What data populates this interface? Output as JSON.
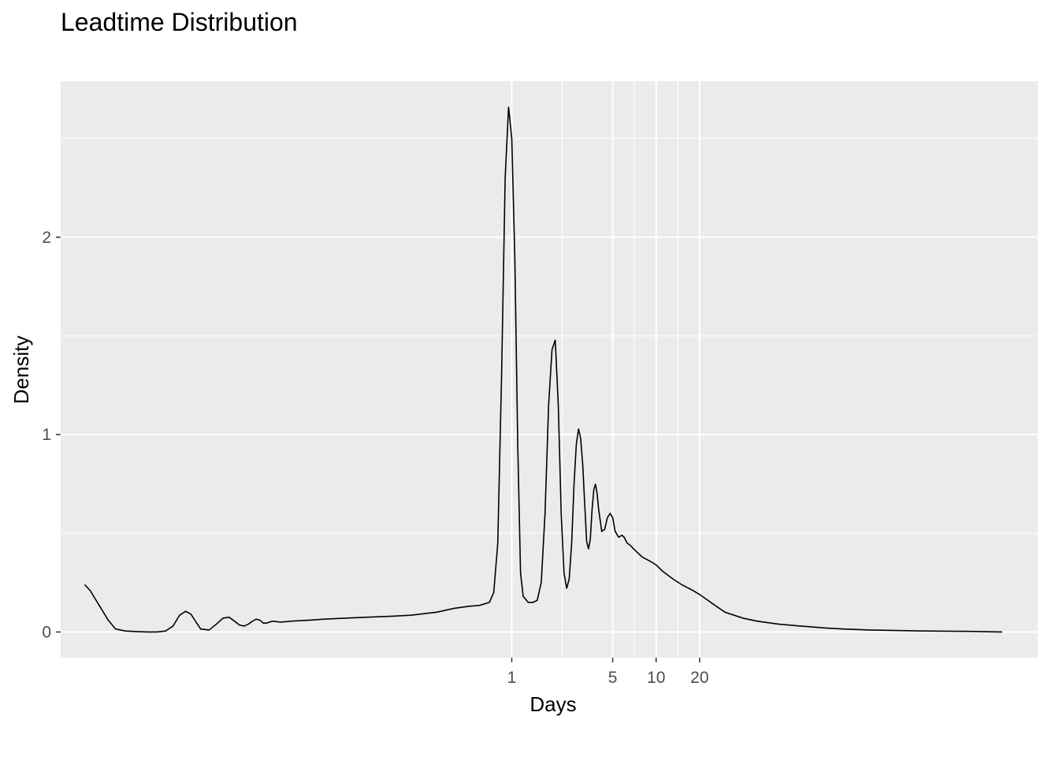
{
  "title": "Leadtime Distribution",
  "chart_data": {
    "type": "line",
    "title": "Leadtime Distribution",
    "xlabel": "Days",
    "ylabel": "Density",
    "x_scale": "log10",
    "x_ticks": [
      1,
      5,
      10,
      20
    ],
    "x_tick_labels": [
      "1",
      "5",
      "10",
      "20"
    ],
    "y_ticks": [
      0,
      1,
      2
    ],
    "y_tick_labels": [
      "0",
      "1",
      "2"
    ],
    "xlim": [
      0.00075,
      4400
    ],
    "ylim": [
      -0.13,
      2.79
    ],
    "grid": true,
    "legend": "none",
    "colors": {
      "panel": "#ebebeb",
      "grid": "#ffffff",
      "line": "#000000",
      "tick_text": "#4d4d4d"
    },
    "series": [
      {
        "x": [
          0.0011,
          0.0012,
          0.0014,
          0.0016,
          0.0018,
          0.0021,
          0.0025,
          0.003,
          0.0035,
          0.004,
          0.0045,
          0.005,
          0.0055,
          0.006,
          0.0065,
          0.007,
          0.008,
          0.009,
          0.01,
          0.011,
          0.012,
          0.013,
          0.014,
          0.015,
          0.016,
          0.017,
          0.018,
          0.019,
          0.02,
          0.022,
          0.025,
          0.03,
          0.04,
          0.05,
          0.07,
          0.1,
          0.15,
          0.2,
          0.3,
          0.4,
          0.5,
          0.6,
          0.7,
          0.75,
          0.8,
          0.85,
          0.9,
          0.95,
          1.0,
          1.05,
          1.1,
          1.15,
          1.2,
          1.3,
          1.4,
          1.5,
          1.6,
          1.7,
          1.8,
          1.9,
          2.0,
          2.1,
          2.2,
          2.3,
          2.4,
          2.5,
          2.6,
          2.7,
          2.8,
          2.9,
          3.0,
          3.1,
          3.2,
          3.3,
          3.4,
          3.5,
          3.6,
          3.7,
          3.8,
          3.9,
          4.0,
          4.2,
          4.4,
          4.6,
          4.8,
          5.0,
          5.2,
          5.5,
          5.8,
          6.0,
          6.3,
          6.6,
          7.0,
          8.0,
          9.0,
          10.0,
          11.0,
          13.0,
          15.0,
          18.0,
          20.0,
          25.0,
          30.0,
          40.0,
          50.0,
          70.0,
          100.0,
          150.0,
          200.0,
          300.0,
          500.0,
          700.0,
          1000.0,
          1500.0,
          2000.0,
          2500.0
        ],
        "y": [
          0.24,
          0.21,
          0.13,
          0.06,
          0.015,
          0.005,
          0.002,
          0.0,
          0.0,
          0.005,
          0.03,
          0.085,
          0.105,
          0.09,
          0.05,
          0.015,
          0.01,
          0.04,
          0.07,
          0.075,
          0.055,
          0.035,
          0.03,
          0.04,
          0.055,
          0.065,
          0.06,
          0.045,
          0.045,
          0.055,
          0.05,
          0.055,
          0.06,
          0.065,
          0.07,
          0.075,
          0.08,
          0.085,
          0.1,
          0.12,
          0.13,
          0.135,
          0.15,
          0.2,
          0.45,
          1.3,
          2.3,
          2.66,
          2.5,
          1.9,
          0.95,
          0.3,
          0.18,
          0.15,
          0.15,
          0.16,
          0.25,
          0.6,
          1.15,
          1.43,
          1.48,
          1.15,
          0.6,
          0.3,
          0.22,
          0.27,
          0.45,
          0.75,
          0.95,
          1.03,
          0.98,
          0.85,
          0.65,
          0.46,
          0.42,
          0.47,
          0.62,
          0.72,
          0.75,
          0.7,
          0.62,
          0.51,
          0.52,
          0.58,
          0.6,
          0.58,
          0.51,
          0.48,
          0.49,
          0.48,
          0.45,
          0.44,
          0.42,
          0.38,
          0.36,
          0.34,
          0.31,
          0.27,
          0.24,
          0.21,
          0.19,
          0.14,
          0.1,
          0.07,
          0.055,
          0.04,
          0.03,
          0.02,
          0.015,
          0.01,
          0.007,
          0.005,
          0.004,
          0.003,
          0.001,
          0.0
        ]
      }
    ]
  }
}
